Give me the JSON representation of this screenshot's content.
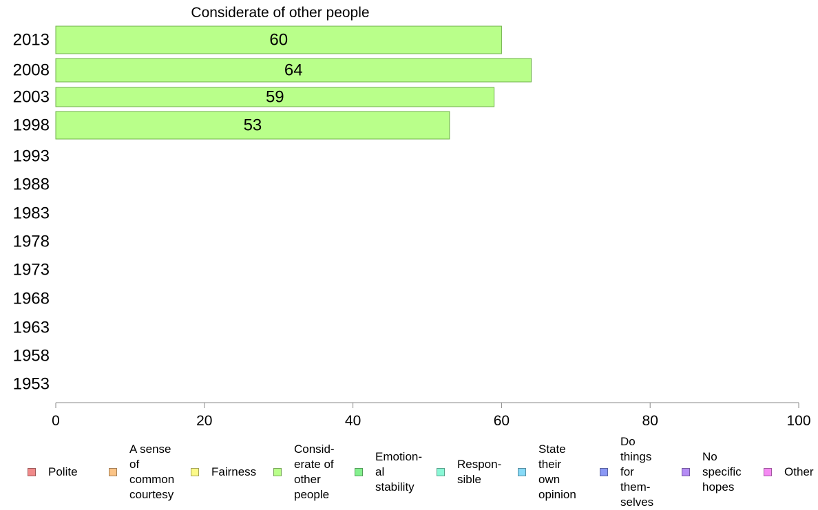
{
  "chart_data": {
    "type": "bar",
    "orientation": "horizontal",
    "title": "Considerate of other people",
    "xlabel": "",
    "ylabel": "",
    "xlim": [
      0,
      100
    ],
    "x_ticks": [
      "0",
      "20",
      "40",
      "60",
      "80",
      "100"
    ],
    "categories": [
      "2013",
      "2008",
      "2003",
      "1998",
      "1993",
      "1988",
      "1983",
      "1978",
      "1973",
      "1968",
      "1963",
      "1958",
      "1953"
    ],
    "values": [
      60,
      64,
      59,
      53,
      null,
      null,
      null,
      null,
      null,
      null,
      null,
      null,
      null
    ],
    "value_labels": [
      "60",
      "64",
      "59",
      "53",
      "",
      "",
      "",
      "",
      "",
      "",
      "",
      "",
      ""
    ],
    "bar_color": "#b9ff8a",
    "bar_edge_color": "#6fb04a",
    "grid": false,
    "legend_placement": "bottom"
  },
  "legend": [
    {
      "label": "Polite",
      "color": "#f08a8a"
    },
    {
      "label": "A sense\nof\ncommon\ncourtesy",
      "color": "#fbc487"
    },
    {
      "label": "Fairness",
      "color": "#fcfa8a"
    },
    {
      "label": "Consid-\nerate of\nother\npeople",
      "color": "#b9ff8a"
    },
    {
      "label": "Emotion-\nal\nstability",
      "color": "#84f08e"
    },
    {
      "label": "Respon-\nsible",
      "color": "#8af7d6"
    },
    {
      "label": "State\ntheir\nown\nopinion",
      "color": "#87daf7"
    },
    {
      "label": "Do\nthings\nfor\nthem-\nselves",
      "color": "#8a98f5"
    },
    {
      "label": "No\nspecific\nhopes",
      "color": "#b58cf5"
    },
    {
      "label": "Other",
      "color": "#f58af3"
    }
  ]
}
